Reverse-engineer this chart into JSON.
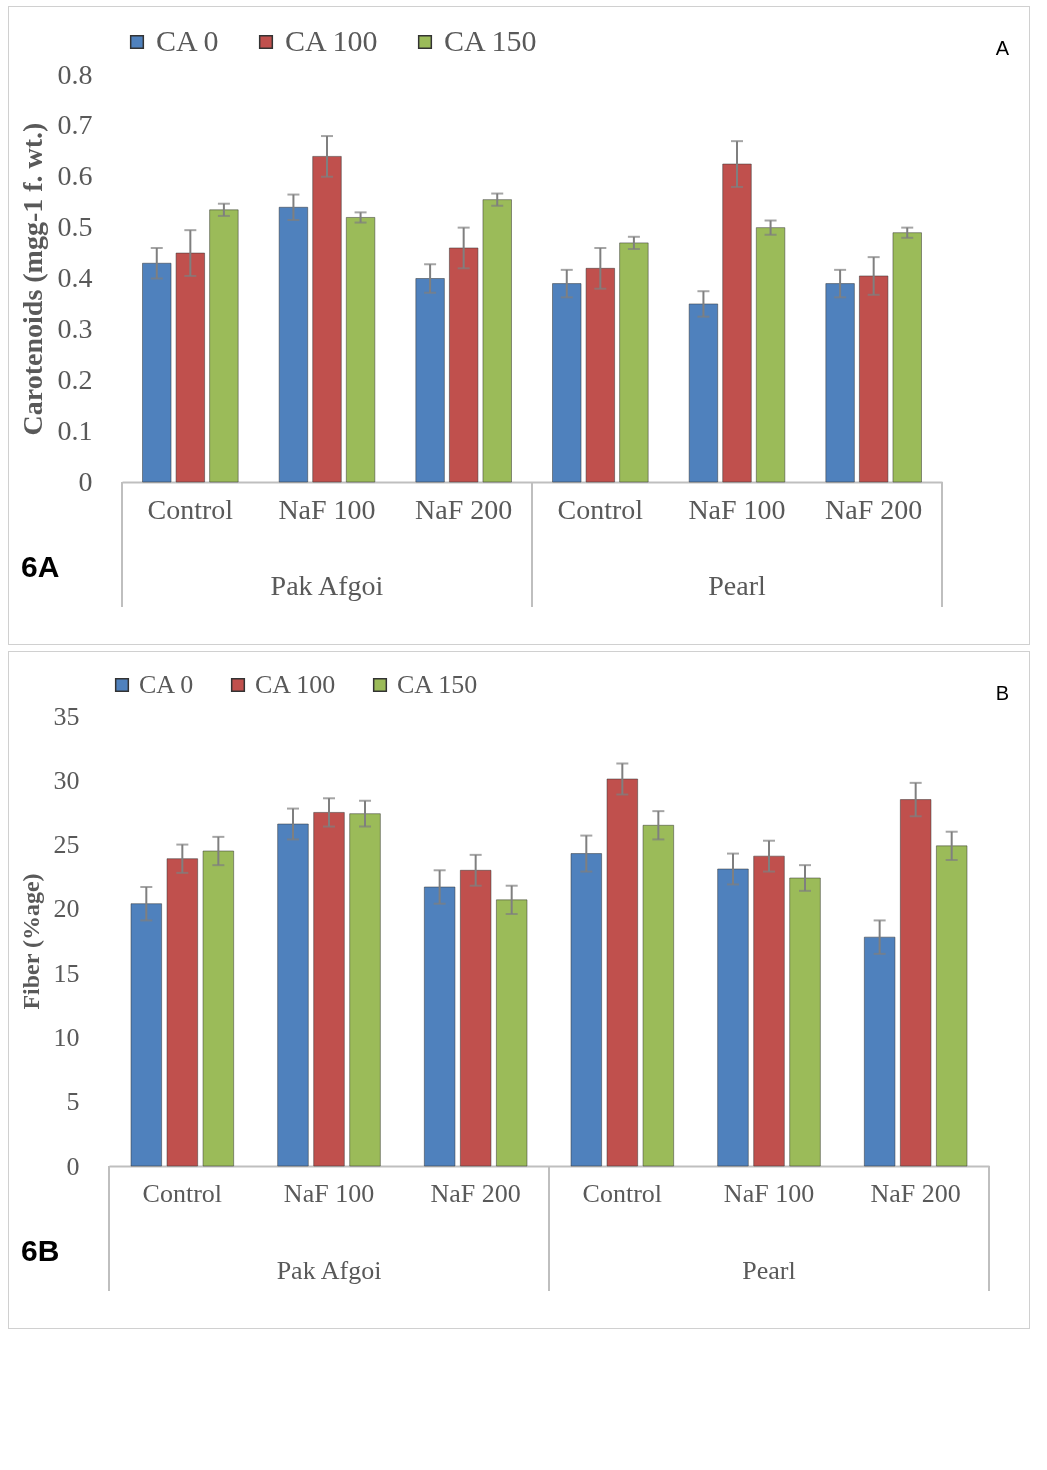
{
  "chart_data": [
    {
      "type": "bar",
      "ylabel": "Carotenoids (mgg-1 f. wt.)",
      "categories": [
        "Control",
        "NaF 100",
        "NaF 200",
        "Control",
        "NaF 100",
        "NaF 200"
      ],
      "ylim": [
        0,
        0.8
      ],
      "yticks": [
        0,
        0.1,
        0.2,
        0.3,
        0.4,
        0.5,
        0.6,
        0.7,
        0.8
      ],
      "grid": false,
      "legend": "top",
      "series": [
        {
          "name": "CA 0",
          "color": "#4f81bd",
          "values": [
            0.43,
            0.54,
            0.4,
            0.39,
            0.35,
            0.39
          ],
          "errors": [
            0.03,
            0.025,
            0.028,
            0.027,
            0.025,
            0.027
          ]
        },
        {
          "name": "CA 100",
          "color": "#c0504d",
          "values": [
            0.45,
            0.64,
            0.46,
            0.42,
            0.625,
            0.405
          ],
          "errors": [
            0.045,
            0.04,
            0.04,
            0.04,
            0.045,
            0.037
          ]
        },
        {
          "name": "CA 150",
          "color": "#9bbb59",
          "values": [
            0.535,
            0.52,
            0.555,
            0.47,
            0.5,
            0.49
          ],
          "errors": [
            0.012,
            0.01,
            0.012,
            0.012,
            0.014,
            0.01
          ]
        }
      ],
      "annotations": [
        "A",
        "Pak Afgoi",
        "Pearl",
        "6A"
      ]
    },
    {
      "type": "bar",
      "ylabel": "Fiber (%age)",
      "categories": [
        "Control",
        "NaF 100",
        "NaF 200",
        "Control",
        "NaF 100",
        "NaF 200"
      ],
      "ylim": [
        0,
        35
      ],
      "yticks": [
        0,
        5,
        10,
        15,
        20,
        25,
        30,
        35
      ],
      "grid": false,
      "legend": "top",
      "series": [
        {
          "name": "CA 0",
          "color": "#4f81bd",
          "values": [
            20.4,
            26.6,
            21.7,
            24.3,
            23.1,
            17.8
          ],
          "errors": [
            1.3,
            1.2,
            1.3,
            1.4,
            1.2,
            1.3
          ]
        },
        {
          "name": "CA 100",
          "color": "#c0504d",
          "values": [
            23.9,
            27.5,
            23.0,
            30.1,
            24.1,
            28.5
          ],
          "errors": [
            1.1,
            1.1,
            1.2,
            1.2,
            1.2,
            1.3
          ]
        },
        {
          "name": "CA 150",
          "color": "#9bbb59",
          "values": [
            24.5,
            27.4,
            20.7,
            26.5,
            22.4,
            24.9
          ],
          "errors": [
            1.1,
            1.0,
            1.1,
            1.1,
            1.0,
            1.1
          ]
        }
      ],
      "annotations": [
        "B",
        "Pak Afgoi",
        "Pearl",
        "6B"
      ]
    }
  ]
}
